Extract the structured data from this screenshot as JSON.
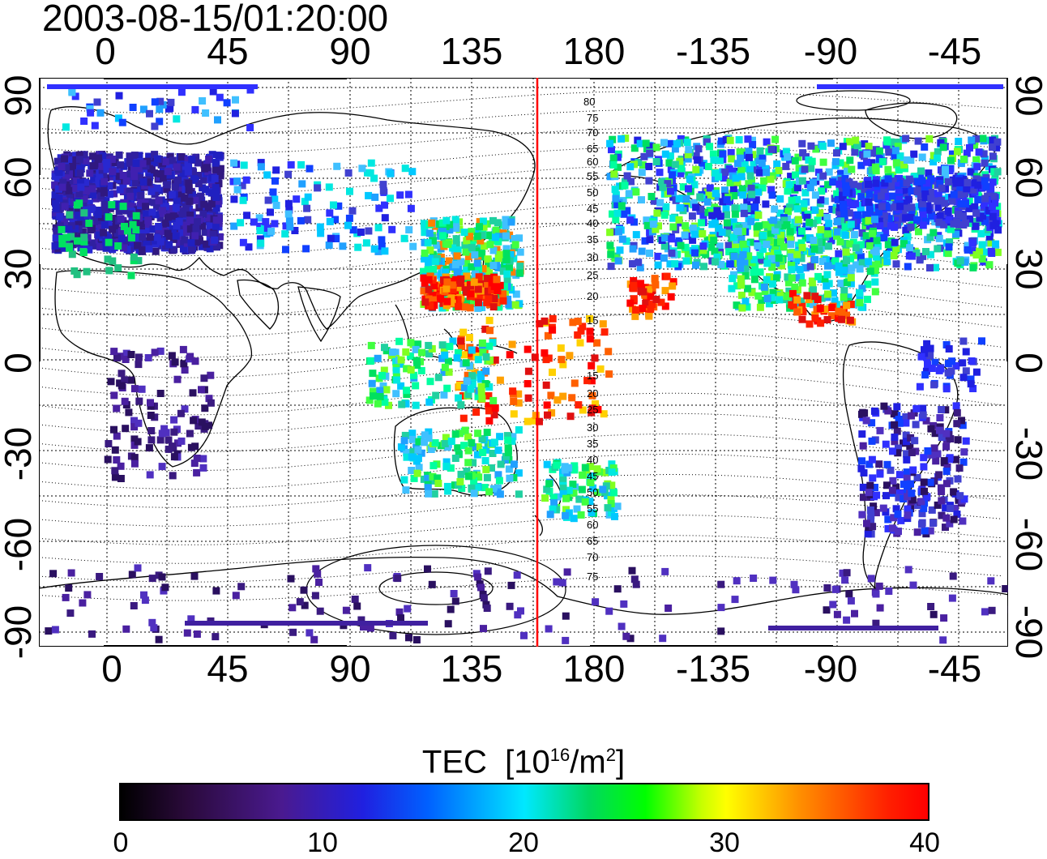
{
  "timestamp": "2003-08-15/01:20:00",
  "longitude_labels": [
    "0",
    "45",
    "90",
    "135",
    "180",
    "-135",
    "-90",
    "-45"
  ],
  "latitude_labels": [
    "90",
    "60",
    "30",
    "0",
    "-30",
    "-60",
    "-90"
  ],
  "dip_contour_labels_north": [
    "80",
    "75",
    "70",
    "65",
    "60",
    "55",
    "50",
    "45",
    "40",
    "35",
    "30",
    "25",
    "20",
    "15"
  ],
  "dip_contour_labels_south": [
    "15",
    "20",
    "25",
    "30",
    "35",
    "40",
    "45",
    "50",
    "55",
    "60",
    "65",
    "70",
    "75"
  ],
  "colorbar": {
    "title_main": "TEC",
    "title_unit_prefix": "[10",
    "title_exp": "16",
    "title_unit_mid": "/m",
    "title_exp2": "2",
    "title_close": "]",
    "ticks": [
      "0",
      "10",
      "20",
      "30",
      "40"
    ],
    "range": [
      0,
      40
    ]
  },
  "colors": {
    "marker_line": "#ff0000",
    "scale": [
      "#000000",
      "#4a1a90",
      "#2020e0",
      "#00e8ff",
      "#00ff00",
      "#ffff00",
      "#ff9000",
      "#ff0000"
    ]
  }
}
